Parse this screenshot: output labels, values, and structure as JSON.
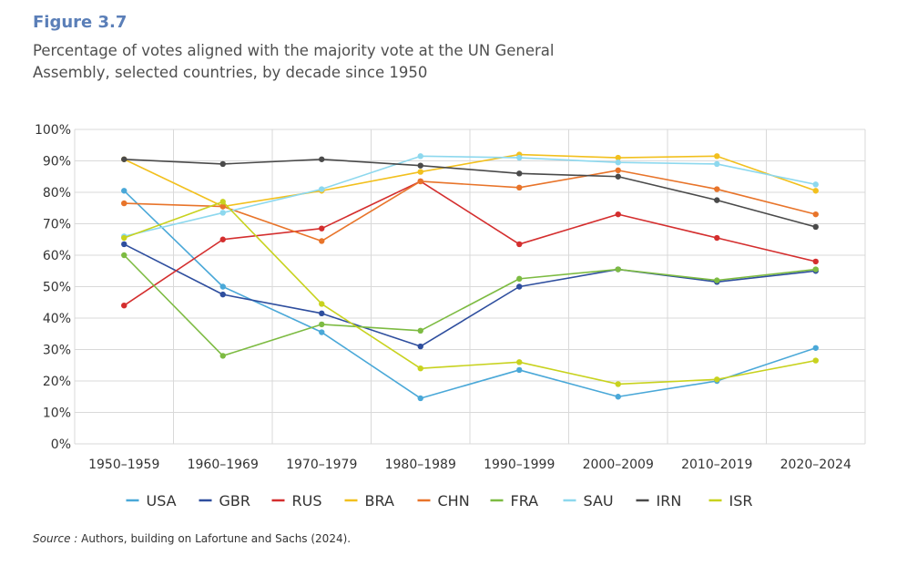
{
  "figure": {
    "label": "Figure 3.7",
    "title": "Percentage of votes aligned with the majority vote at the UN General Assembly, selected countries, by decade since 1950",
    "source_label": "Source :",
    "source_text": " Authors, building on Lafortune and Sachs (2024)."
  },
  "chart_data": {
    "type": "line",
    "title": "Percentage of votes aligned with the majority vote at the UN General Assembly, selected countries, by decade since 1950",
    "xlabel": "",
    "ylabel": "",
    "categories": [
      "1950–1959",
      "1960–1969",
      "1970–1979",
      "1980–1989",
      "1990–1999",
      "2000–2009",
      "2010–2019",
      "2020–2024"
    ],
    "ylim": [
      0,
      100
    ],
    "yticks": [
      0,
      10,
      20,
      30,
      40,
      50,
      60,
      70,
      80,
      90,
      100
    ],
    "ytick_labels": [
      "0%",
      "10%",
      "20%",
      "30%",
      "40%",
      "50%",
      "60%",
      "70%",
      "80%",
      "90%",
      "100%"
    ],
    "grid": true,
    "legend_position": "bottom",
    "series": [
      {
        "name": "USA",
        "color": "#4aa8d8",
        "values": [
          80.5,
          50,
          35.5,
          14.5,
          23.5,
          15,
          20,
          30.5
        ]
      },
      {
        "name": "GBR",
        "color": "#2e4e9e",
        "values": [
          63.5,
          47.5,
          41.5,
          31,
          50,
          55.5,
          51.5,
          55
        ]
      },
      {
        "name": "RUS",
        "color": "#d42e2e",
        "values": [
          44,
          65,
          68.5,
          83.5,
          63.5,
          73,
          65.5,
          58
        ]
      },
      {
        "name": "BRA",
        "color": "#f2c01e",
        "values": [
          90.5,
          75.5,
          80.5,
          86.5,
          92,
          91,
          91.5,
          80.5
        ]
      },
      {
        "name": "CHN",
        "color": "#e8742a",
        "values": [
          76.5,
          75.5,
          64.5,
          83.5,
          81.5,
          87,
          81,
          73
        ]
      },
      {
        "name": "FRA",
        "color": "#7dbb42",
        "values": [
          60,
          28,
          38,
          36,
          52.5,
          55.5,
          52,
          55.5
        ]
      },
      {
        "name": "SAU",
        "color": "#8dd8ee",
        "values": [
          66,
          73.5,
          81,
          91.5,
          91,
          89.5,
          89,
          82.5
        ]
      },
      {
        "name": "IRN",
        "color": "#4a4a4a",
        "values": [
          90.5,
          89,
          90.5,
          88.5,
          86,
          85,
          77.5,
          69
        ]
      },
      {
        "name": "ISR",
        "color": "#c8d21e",
        "values": [
          65.5,
          77,
          44.5,
          24,
          26,
          19,
          20.5,
          26.5
        ]
      }
    ]
  }
}
